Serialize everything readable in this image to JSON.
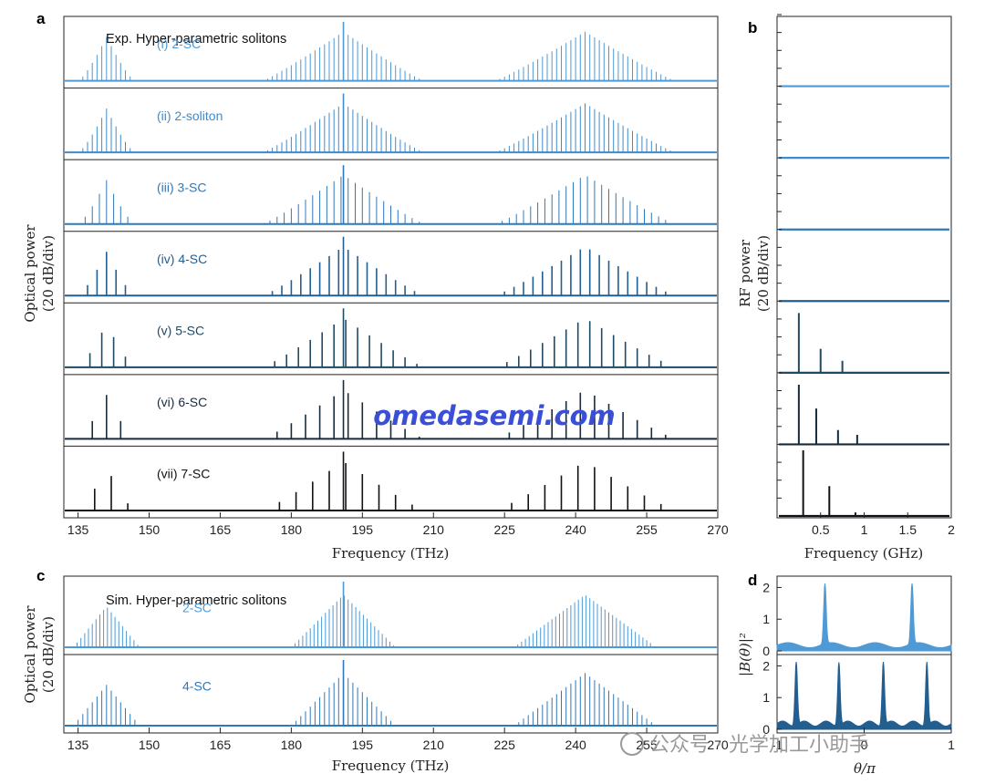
{
  "panels": {
    "a": "a",
    "b": "b",
    "c": "c",
    "d": "d"
  },
  "colors": {
    "c1": "#4e9ad6",
    "c2": "#3f8bcd",
    "c3": "#2f78ba",
    "c4": "#235e91",
    "c5": "#1e4a64",
    "c6": "#172b3d",
    "c7": "#0f1216"
  },
  "watermarks": {
    "center": "omedasemi.com",
    "corner": "公众号 · 光学加工小助手"
  },
  "chart_data": [
    {
      "id": "a",
      "type": "line",
      "title": "Exp. Hyper-parametric solitons",
      "xlabel": "Frequency (THz)",
      "ylabel": "Optical power (20 dB/div)",
      "xlim": [
        132,
        270
      ],
      "xticks": [
        135,
        150,
        165,
        180,
        195,
        210,
        225,
        240,
        255,
        270
      ],
      "series": [
        {
          "name": "(i) 2-SC",
          "comb_spacing_thz": 1.0,
          "peaks_thz": [
            141,
            191,
            242
          ],
          "lobe_halfwidth_thz": [
            6,
            17,
            19
          ]
        },
        {
          "name": "(ii) 2-soliton",
          "comb_spacing_thz": 1.0,
          "peaks_thz": [
            141,
            191,
            242
          ],
          "lobe_halfwidth_thz": [
            6,
            17,
            19
          ]
        },
        {
          "name": "(iii) 3-SC",
          "comb_spacing_thz": 1.5,
          "peaks_thz": [
            141,
            191,
            242
          ],
          "lobe_halfwidth_thz": [
            6,
            17,
            19
          ]
        },
        {
          "name": "(iv) 4-SC",
          "comb_spacing_thz": 2.0,
          "peaks_thz": [
            141,
            191,
            242
          ],
          "lobe_halfwidth_thz": [
            6,
            17,
            19
          ]
        },
        {
          "name": "(v) 5-SC",
          "comb_spacing_thz": 2.5,
          "peaks_thz": [
            141,
            191,
            242
          ],
          "lobe_halfwidth_thz": [
            6,
            17,
            19
          ]
        },
        {
          "name": "(vi) 6-SC",
          "comb_spacing_thz": 3.0,
          "peaks_thz": [
            141,
            191,
            242
          ],
          "lobe_halfwidth_thz": [
            6,
            17,
            19
          ]
        },
        {
          "name": "(vii) 7-SC",
          "comb_spacing_thz": 3.5,
          "peaks_thz": [
            141,
            191,
            242
          ],
          "lobe_halfwidth_thz": [
            6,
            17,
            19
          ]
        }
      ]
    },
    {
      "id": "b",
      "type": "line",
      "xlabel": "Frequency (GHz)",
      "ylabel": "RF power (20 dB/div)",
      "xlim": [
        0,
        2
      ],
      "xticks": [
        "0.5",
        "1",
        "1.5",
        "2"
      ],
      "xtick_values": [
        0.5,
        1,
        1.5,
        2
      ],
      "series_peaks_ghz": [
        [],
        [],
        [],
        [],
        [
          0.25,
          0.5,
          0.75
        ],
        [
          0.25,
          0.45,
          0.7,
          0.92
        ],
        [
          0.3,
          0.6,
          0.9
        ]
      ],
      "series_peak_heights_db": [
        [],
        [],
        [],
        [],
        [
          50,
          20,
          10
        ],
        [
          50,
          30,
          12,
          8
        ],
        [
          55,
          25,
          3
        ]
      ]
    },
    {
      "id": "c",
      "type": "line",
      "title": "Sim. Hyper-parametric solitons",
      "xlabel": "Frequency (THz)",
      "ylabel": "Optical power (20 dB/div)",
      "xlim": [
        132,
        270
      ],
      "xticks": [
        135,
        150,
        165,
        180,
        195,
        210,
        225,
        240,
        255,
        270
      ],
      "series": [
        {
          "name": "2-SC",
          "comb_spacing_thz": 0.8,
          "peaks_thz": [
            141,
            191,
            242
          ],
          "lobe_halfwidth_thz": [
            7,
            11,
            15
          ]
        },
        {
          "name": "4-SC",
          "comb_spacing_thz": 1.0,
          "peaks_thz": [
            141,
            191,
            242
          ],
          "lobe_halfwidth_thz": [
            7,
            11,
            15
          ]
        }
      ]
    },
    {
      "id": "d",
      "type": "area",
      "xlabel": "θ/π",
      "ylabel": "|B(θ)|²",
      "xlim": [
        -1,
        1
      ],
      "ylim": [
        0,
        2.3
      ],
      "xticks": [
        "-1",
        "0",
        "1"
      ],
      "xtick_values": [
        -1,
        0,
        1
      ],
      "yticks": [
        "0",
        "1",
        "2"
      ],
      "ytick_values": [
        0,
        1,
        2
      ],
      "series": [
        {
          "pulse_positions_pi": [
            -0.45,
            0.55
          ],
          "peak": 1.9
        },
        {
          "pulse_positions_pi": [
            -0.78,
            -0.29,
            0.22,
            0.72
          ],
          "peak": 2.0
        }
      ]
    }
  ]
}
